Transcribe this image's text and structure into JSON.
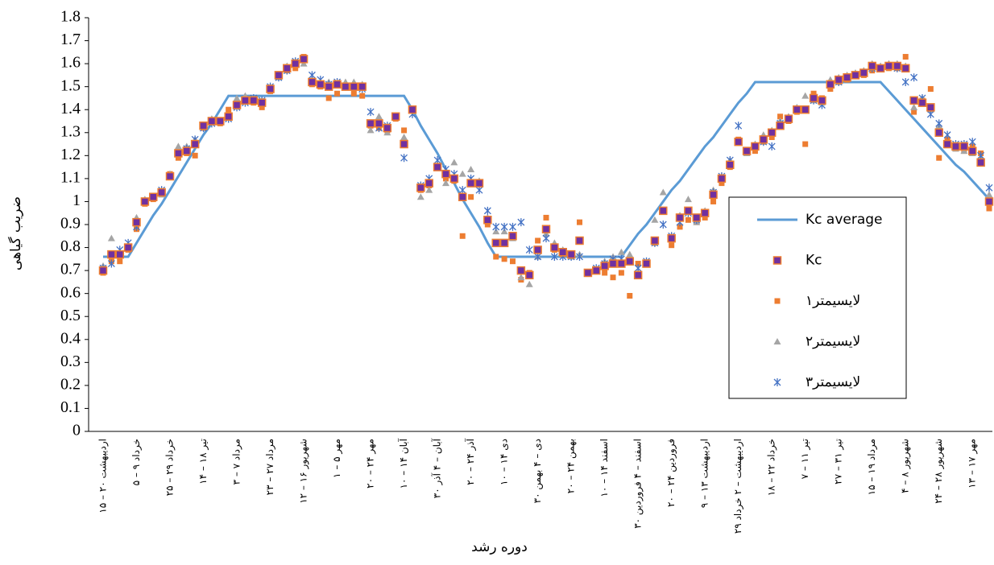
{
  "chart_data": {
    "type": "scatter",
    "y_label": "ضریب گیاهی",
    "x_label": "دوره رشد",
    "categories": [
      "۱۵ – ۲۰ اردیبهشت",
      null,
      null,
      null,
      "۵ – ۹ خرداد",
      null,
      null,
      null,
      "۲۵ – ۲۹ خرداد",
      null,
      null,
      null,
      "۱۴ – ۱۸ تیر",
      null,
      null,
      null,
      "۳ – ۷ مرداد",
      null,
      null,
      null,
      "۲۳ – ۲۷ مرداد",
      null,
      null,
      null,
      "۱۲ – ۱۶ شهریور",
      null,
      null,
      null,
      "۱ – ۵ مهر",
      null,
      null,
      null,
      "۲۰ – ۲۴ مهر",
      null,
      null,
      null,
      "۱۰ – ۱۴ آبان",
      null,
      null,
      null,
      "۳۰ آبان – ۴ آذر",
      null,
      null,
      null,
      "۲۰ – ۲۴ آذر",
      null,
      null,
      null,
      "۱۰ – ۱۴ دی",
      null,
      null,
      null,
      "۳۰ دی – ۴ بهمن",
      null,
      null,
      null,
      "۲۰ – ۲۴ بهمن",
      null,
      null,
      null,
      "۱۰ – ۱۴ اسفند",
      null,
      null,
      null,
      "۳۰ اسفند – ۴ فروردین",
      null,
      null,
      null,
      "۲۰ – ۲۴ فروردین",
      null,
      null,
      null,
      "۹ – ۱۳ اردیبهشت",
      null,
      null,
      null,
      "۲۹ اردیبهشت – ۲ خرداد",
      null,
      null,
      null,
      "۱۸ – ۲۲ خرداد",
      null,
      null,
      null,
      "۷ – ۱۱ تیر",
      null,
      null,
      null,
      "۲۷ – ۳۱ تیر",
      null,
      null,
      null,
      "۱۵ – ۱۹ مرداد",
      null,
      null,
      null,
      "۴ – ۸ شهریور",
      null,
      null,
      null,
      "۲۴ – ۲۸ شهریور",
      null,
      null,
      null,
      "۱۳ – ۱۷ مهر",
      null,
      null
    ],
    "ylim": [
      0,
      1.8
    ],
    "yticks": [
      0,
      0.1,
      0.2,
      0.3,
      0.4,
      0.5,
      0.6,
      0.7,
      0.8,
      0.9,
      1,
      1.1,
      1.2,
      1.3,
      1.4,
      1.5,
      1.6,
      1.7,
      1.8
    ],
    "grid": false,
    "legend": "right",
    "series": [
      {
        "name": "Kc average",
        "type": "line",
        "color": "#5b9bd5",
        "values": [
          0.76,
          0.76,
          0.76,
          0.76,
          0.82,
          0.88,
          0.94,
          0.99,
          1.05,
          1.11,
          1.17,
          1.23,
          1.29,
          1.34,
          1.4,
          1.46,
          1.46,
          1.46,
          1.46,
          1.46,
          1.46,
          1.46,
          1.46,
          1.46,
          1.46,
          1.46,
          1.46,
          1.46,
          1.46,
          1.46,
          1.46,
          1.46,
          1.46,
          1.46,
          1.46,
          1.46,
          1.46,
          1.4,
          1.33,
          1.27,
          1.21,
          1.14,
          1.08,
          1.01,
          0.95,
          0.89,
          0.82,
          0.76,
          0.76,
          0.76,
          0.76,
          0.76,
          0.76,
          0.76,
          0.76,
          0.76,
          0.76,
          0.76,
          0.76,
          0.76,
          0.76,
          0.76,
          0.76,
          0.81,
          0.86,
          0.9,
          0.95,
          1.0,
          1.05,
          1.09,
          1.14,
          1.19,
          1.24,
          1.28,
          1.33,
          1.38,
          1.43,
          1.47,
          1.52,
          1.52,
          1.52,
          1.52,
          1.52,
          1.52,
          1.52,
          1.52,
          1.52,
          1.52,
          1.52,
          1.52,
          1.52,
          1.52,
          1.52,
          1.52,
          1.48,
          1.44,
          1.4,
          1.36,
          1.32,
          1.28,
          1.24,
          1.2,
          1.16,
          1.13,
          1.09,
          1.05,
          1.01
        ]
      },
      {
        "name": "Kc",
        "type": "scatter",
        "marker": "square",
        "color": "#7030a0",
        "edge_color": "#ed7d31",
        "values": [
          0.7,
          0.77,
          0.77,
          0.8,
          0.91,
          1.0,
          1.02,
          1.04,
          1.11,
          1.21,
          1.22,
          1.25,
          1.33,
          1.35,
          1.35,
          1.37,
          1.42,
          1.44,
          1.44,
          1.43,
          1.49,
          1.55,
          1.58,
          1.6,
          1.62,
          1.52,
          1.51,
          1.5,
          1.51,
          1.5,
          1.5,
          1.5,
          1.34,
          1.34,
          1.32,
          1.37,
          1.25,
          1.4,
          1.06,
          1.08,
          1.15,
          1.12,
          1.1,
          1.02,
          1.08,
          1.08,
          0.92,
          0.82,
          0.82,
          0.85,
          0.7,
          0.68,
          0.79,
          0.88,
          0.8,
          0.78,
          0.77,
          0.83,
          0.69,
          0.7,
          0.72,
          0.73,
          0.73,
          0.74,
          0.68,
          0.73,
          0.83,
          0.96,
          0.84,
          0.93,
          0.96,
          0.93,
          0.95,
          1.03,
          1.1,
          1.16,
          1.26,
          1.22,
          1.24,
          1.27,
          1.3,
          1.33,
          1.36,
          1.4,
          1.4,
          1.45,
          1.44,
          1.51,
          1.53,
          1.54,
          1.55,
          1.56,
          1.59,
          1.58,
          1.59,
          1.59,
          1.58,
          1.44,
          1.43,
          1.41,
          1.3,
          1.25,
          1.24,
          1.24,
          1.22,
          1.17,
          1.0
        ]
      },
      {
        "name": "لایسیمتر۱",
        "type": "scatter",
        "marker": "small-square",
        "color": "#ed7d31",
        "values": [
          0.69,
          0.74,
          0.74,
          0.79,
          0.88,
          0.99,
          1.01,
          1.04,
          1.12,
          1.19,
          1.21,
          1.2,
          1.32,
          1.35,
          1.34,
          1.4,
          1.42,
          1.44,
          1.43,
          1.41,
          1.48,
          1.55,
          1.57,
          1.58,
          1.63,
          1.51,
          1.5,
          1.45,
          1.47,
          1.5,
          1.47,
          1.46,
          1.33,
          1.32,
          1.31,
          1.36,
          1.31,
          1.4,
          1.05,
          1.07,
          1.15,
          1.1,
          1.09,
          0.85,
          1.02,
          1.08,
          0.9,
          0.76,
          0.75,
          0.74,
          0.66,
          0.69,
          0.83,
          0.93,
          0.79,
          0.77,
          0.76,
          0.91,
          0.69,
          0.7,
          0.69,
          0.67,
          0.69,
          0.59,
          0.73,
          0.73,
          0.82,
          0.96,
          0.81,
          0.89,
          0.92,
          0.91,
          0.93,
          1.0,
          1.08,
          1.15,
          1.27,
          1.21,
          1.22,
          1.26,
          1.28,
          1.37,
          1.35,
          1.39,
          1.25,
          1.47,
          1.45,
          1.49,
          1.52,
          1.53,
          1.55,
          1.55,
          1.57,
          1.58,
          1.58,
          1.58,
          1.63,
          1.39,
          1.44,
          1.49,
          1.19,
          1.27,
          1.23,
          1.22,
          1.24,
          1.21,
          0.97
        ]
      },
      {
        "name": "لایسیمتر۲",
        "type": "scatter",
        "marker": "triangle",
        "color": "#a5a5a5",
        "values": [
          0.72,
          0.84,
          0.78,
          0.81,
          0.93,
          1.01,
          1.02,
          1.03,
          1.12,
          1.24,
          1.24,
          1.27,
          1.33,
          1.36,
          1.35,
          1.37,
          1.45,
          1.46,
          1.45,
          1.44,
          1.5,
          1.54,
          1.59,
          1.61,
          1.6,
          1.53,
          1.52,
          1.52,
          1.51,
          1.52,
          1.52,
          1.51,
          1.31,
          1.37,
          1.3,
          1.37,
          1.28,
          1.4,
          1.02,
          1.05,
          1.16,
          1.08,
          1.17,
          1.12,
          1.14,
          1.09,
          0.93,
          0.87,
          0.87,
          0.84,
          0.67,
          0.64,
          0.76,
          0.86,
          0.82,
          0.79,
          0.76,
          0.77,
          0.69,
          0.7,
          0.74,
          0.76,
          0.78,
          0.77,
          0.69,
          0.74,
          0.92,
          1.04,
          0.85,
          0.94,
          1.01,
          0.91,
          0.96,
          1.05,
          1.11,
          1.18,
          1.26,
          1.21,
          1.25,
          1.29,
          1.31,
          1.35,
          1.37,
          1.41,
          1.46,
          1.44,
          1.43,
          1.53,
          1.54,
          1.55,
          1.56,
          1.57,
          1.6,
          1.59,
          1.6,
          1.6,
          1.59,
          1.41,
          1.45,
          1.4,
          1.33,
          1.25,
          1.23,
          1.22,
          1.21,
          1.19,
          1.03
        ]
      },
      {
        "name": "لایسیمتر۳",
        "type": "scatter",
        "marker": "star",
        "color": "#4472c4",
        "values": [
          0.71,
          0.73,
          0.79,
          0.82,
          0.89,
          1.0,
          1.02,
          1.05,
          1.11,
          1.21,
          1.23,
          1.27,
          1.32,
          1.34,
          1.35,
          1.36,
          1.41,
          1.43,
          1.45,
          1.44,
          1.5,
          1.54,
          1.57,
          1.61,
          1.62,
          1.55,
          1.53,
          1.51,
          1.52,
          1.5,
          1.5,
          1.49,
          1.39,
          1.32,
          1.33,
          1.37,
          1.19,
          1.38,
          1.07,
          1.1,
          1.18,
          1.14,
          1.12,
          1.05,
          1.1,
          1.05,
          0.96,
          0.89,
          0.89,
          0.89,
          0.91,
          0.79,
          0.76,
          0.84,
          0.76,
          0.76,
          0.76,
          0.76,
          0.69,
          0.71,
          0.73,
          0.75,
          0.75,
          0.74,
          0.71,
          0.74,
          0.82,
          0.9,
          0.85,
          0.91,
          0.95,
          0.92,
          0.95,
          1.04,
          1.11,
          1.18,
          1.33,
          1.22,
          1.24,
          1.26,
          1.24,
          1.34,
          1.36,
          1.4,
          1.4,
          1.44,
          1.42,
          1.51,
          1.52,
          1.54,
          1.55,
          1.56,
          1.58,
          1.58,
          1.59,
          1.58,
          1.52,
          1.54,
          1.45,
          1.38,
          1.34,
          1.29,
          1.25,
          1.25,
          1.26,
          1.2,
          1.06
        ]
      }
    ]
  }
}
